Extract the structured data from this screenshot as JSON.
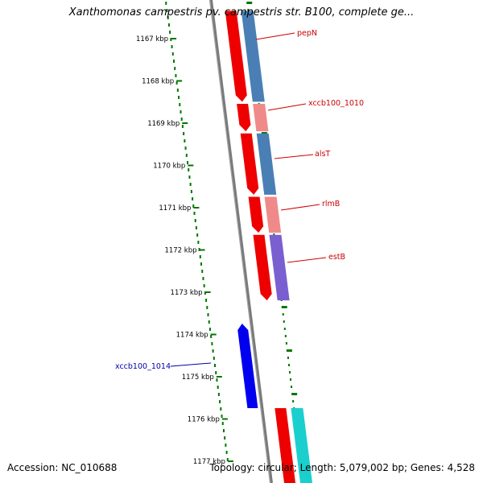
{
  "title": "Xanthomonas campestris pv. campestris str. B100, complete ge...",
  "footer": {
    "accession": "Accession: NC_010688",
    "summary": "Topology: circular; Length: 5,079,002 bp; Genes: 4,528"
  },
  "colors": {
    "forward_cds": "#ee0000",
    "reverse_cds": "#0000ee",
    "cog_blue": "#4a7fb5",
    "cog_pink": "#f08a8a",
    "cog_purple": "#7a5fd0",
    "cog_cyan": "#1ccfcf",
    "backbone": "#7a7a7a",
    "gc_skew_dots": "#007700",
    "forward_label": "#cc0000",
    "reverse_label": "#0000aa"
  },
  "ticks": [
    {
      "label": "1167 kbp",
      "kbp": 1167
    },
    {
      "label": "1168 kbp",
      "kbp": 1168
    },
    {
      "label": "1169 kbp",
      "kbp": 1169
    },
    {
      "label": "1170 kbp",
      "kbp": 1170
    },
    {
      "label": "1171 kbp",
      "kbp": 1171
    },
    {
      "label": "1172 kbp",
      "kbp": 1172
    },
    {
      "label": "1173 kbp",
      "kbp": 1173
    },
    {
      "label": "1174 kbp",
      "kbp": 1174
    },
    {
      "label": "1175 kbp",
      "kbp": 1175
    },
    {
      "label": "1176 kbp",
      "kbp": 1176
    },
    {
      "label": "1177 kbp",
      "kbp": 1177
    }
  ],
  "genes": [
    {
      "name": "pepN",
      "strand": "+",
      "start_kbp": 1166.4,
      "end_kbp": 1168.55,
      "cog": "cog_blue"
    },
    {
      "name": "xccb100_1010",
      "strand": "+",
      "start_kbp": 1168.6,
      "end_kbp": 1169.25,
      "cog": "cog_pink"
    },
    {
      "name": "alsT",
      "strand": "+",
      "start_kbp": 1169.3,
      "end_kbp": 1170.75,
      "cog": "cog_blue"
    },
    {
      "name": "rlmB",
      "strand": "+",
      "start_kbp": 1170.8,
      "end_kbp": 1171.65,
      "cog": "cog_pink"
    },
    {
      "name": "estB",
      "strand": "+",
      "start_kbp": 1171.7,
      "end_kbp": 1173.25,
      "cog": "cog_purple"
    },
    {
      "name": "xccb100_1014",
      "strand": "-",
      "start_kbp": 1173.8,
      "end_kbp": 1175.8,
      "cog": ""
    },
    {
      "name": "",
      "strand": "+",
      "start_kbp": 1175.8,
      "end_kbp": 1177.7,
      "cog": "cog_cyan"
    }
  ]
}
